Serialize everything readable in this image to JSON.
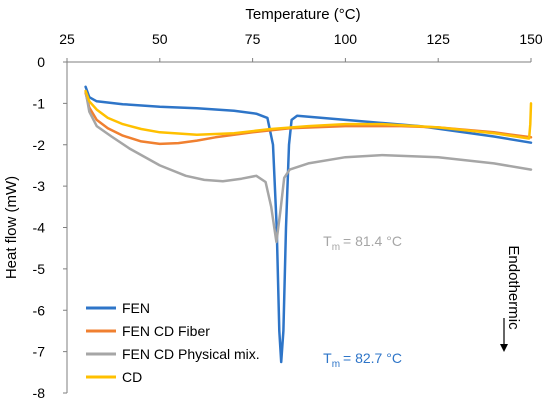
{
  "chart_data": {
    "type": "line",
    "title": "",
    "xlabel": "Temperature (°C)",
    "ylabel": "Heat flow (mW)",
    "xlim": [
      25,
      150
    ],
    "ylim": [
      -8,
      0
    ],
    "x_ticks": [
      25,
      50,
      75,
      100,
      125,
      150
    ],
    "y_ticks": [
      0,
      -1,
      -2,
      -3,
      -4,
      -5,
      -6,
      -7,
      -8
    ],
    "x_axis_position": "top",
    "grid": false,
    "legend_position": "bottom-left",
    "series": [
      {
        "name": "FEN",
        "color": "#2E75C8",
        "points": [
          [
            30,
            -0.6
          ],
          [
            31,
            -0.85
          ],
          [
            33,
            -0.95
          ],
          [
            40,
            -1.02
          ],
          [
            50,
            -1.08
          ],
          [
            60,
            -1.12
          ],
          [
            70,
            -1.18
          ],
          [
            76,
            -1.25
          ],
          [
            79,
            -1.35
          ],
          [
            80.5,
            -2.0
          ],
          [
            81.5,
            -4.0
          ],
          [
            82.2,
            -6.5
          ],
          [
            82.7,
            -7.25
          ],
          [
            83.3,
            -6.5
          ],
          [
            84,
            -4.0
          ],
          [
            84.8,
            -2.0
          ],
          [
            85.5,
            -1.4
          ],
          [
            87,
            -1.3
          ],
          [
            100,
            -1.4
          ],
          [
            120,
            -1.55
          ],
          [
            140,
            -1.8
          ],
          [
            150,
            -1.95
          ]
        ]
      },
      {
        "name": "FEN CD Fiber",
        "color": "#F08030",
        "points": [
          [
            30,
            -0.75
          ],
          [
            31,
            -1.1
          ],
          [
            33,
            -1.4
          ],
          [
            36,
            -1.6
          ],
          [
            40,
            -1.78
          ],
          [
            45,
            -1.92
          ],
          [
            50,
            -1.98
          ],
          [
            55,
            -1.96
          ],
          [
            60,
            -1.9
          ],
          [
            65,
            -1.82
          ],
          [
            75,
            -1.7
          ],
          [
            85,
            -1.6
          ],
          [
            100,
            -1.55
          ],
          [
            115,
            -1.55
          ],
          [
            125,
            -1.58
          ],
          [
            140,
            -1.7
          ],
          [
            150,
            -1.82
          ]
        ]
      },
      {
        "name": "FEN CD Physical mix.",
        "color": "#A6A6A6",
        "points": [
          [
            30,
            -0.7
          ],
          [
            31,
            -1.2
          ],
          [
            33,
            -1.55
          ],
          [
            37,
            -1.8
          ],
          [
            42,
            -2.1
          ],
          [
            50,
            -2.5
          ],
          [
            57,
            -2.75
          ],
          [
            62,
            -2.85
          ],
          [
            67,
            -2.88
          ],
          [
            72,
            -2.82
          ],
          [
            76,
            -2.75
          ],
          [
            78.5,
            -2.9
          ],
          [
            80,
            -3.5
          ],
          [
            81.4,
            -4.35
          ],
          [
            82.5,
            -3.6
          ],
          [
            83.5,
            -2.8
          ],
          [
            85,
            -2.6
          ],
          [
            90,
            -2.45
          ],
          [
            100,
            -2.3
          ],
          [
            110,
            -2.25
          ],
          [
            125,
            -2.3
          ],
          [
            140,
            -2.45
          ],
          [
            150,
            -2.6
          ]
        ]
      },
      {
        "name": "CD",
        "color": "#FFC000",
        "points": [
          [
            30,
            -0.7
          ],
          [
            31,
            -0.95
          ],
          [
            33,
            -1.15
          ],
          [
            36,
            -1.35
          ],
          [
            40,
            -1.5
          ],
          [
            45,
            -1.62
          ],
          [
            50,
            -1.7
          ],
          [
            60,
            -1.76
          ],
          [
            70,
            -1.72
          ],
          [
            80,
            -1.62
          ],
          [
            90,
            -1.55
          ],
          [
            100,
            -1.5
          ],
          [
            110,
            -1.5
          ],
          [
            125,
            -1.58
          ],
          [
            140,
            -1.72
          ],
          [
            149.5,
            -1.85
          ],
          [
            149.8,
            -1.5
          ],
          [
            150,
            -1.0
          ]
        ]
      }
    ],
    "annotations": [
      {
        "id": "tm-phys",
        "base": "T",
        "sub": "m",
        "rest": "= 81.4 °C",
        "color": "#A6A6A6",
        "x": 94,
        "y": -4.33
      },
      {
        "id": "tm-fen",
        "base": "T",
        "sub": "m",
        "rest": "= 82.7 °C",
        "color": "#2E75C8",
        "x": 94,
        "y": -7.15
      }
    ],
    "side_label": {
      "text": "Endothermic"
    }
  }
}
